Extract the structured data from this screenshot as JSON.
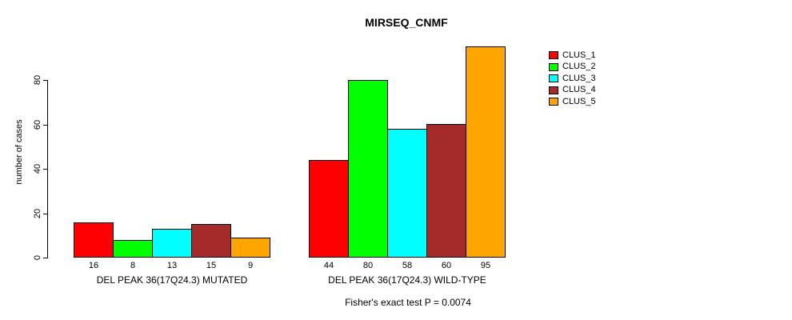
{
  "chart_data": {
    "type": "bar",
    "title": "MIRSEQ_CNMF",
    "ylabel": "number of cases",
    "xlabel": "",
    "annotation": "Fisher's exact test P = 0.0074",
    "categories": [
      "DEL PEAK 36(17Q24.3) MUTATED",
      "DEL PEAK 36(17Q24.3) WILD-TYPE"
    ],
    "series": [
      {
        "name": "CLUS_1",
        "color": "#FF0000",
        "values": [
          16,
          44
        ]
      },
      {
        "name": "CLUS_2",
        "color": "#00FF00",
        "values": [
          8,
          80
        ]
      },
      {
        "name": "CLUS_3",
        "color": "#00FFFF",
        "values": [
          13,
          58
        ]
      },
      {
        "name": "CLUS_4",
        "color": "#A52A2A",
        "values": [
          15,
          60
        ]
      },
      {
        "name": "CLUS_5",
        "color": "#FFA500",
        "values": [
          9,
          95
        ]
      }
    ],
    "yticks": [
      0,
      20,
      40,
      60,
      80
    ],
    "ylim": [
      0,
      95
    ],
    "grid": false,
    "legend_position": "right",
    "bar_value_labels_shown": true,
    "background": "#FFFFFF",
    "axis_color": "#000000"
  }
}
